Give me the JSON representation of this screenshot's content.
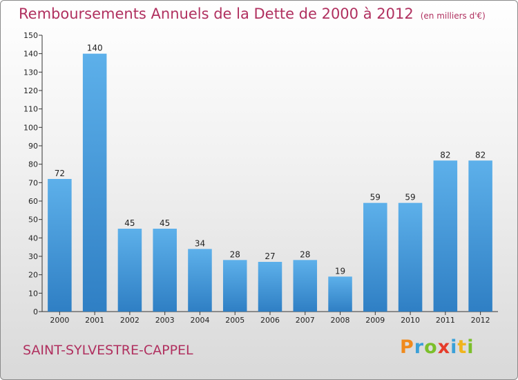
{
  "title": "Remboursements Annuels de la Dette de 2000 à 2012",
  "unit_note": "(en milliers d'€)",
  "city": "SAINT-SYLVESTRE-CAPPEL",
  "logo": {
    "letters": [
      "P",
      "r",
      "o",
      "x",
      "i",
      "t",
      "i"
    ],
    "colors": [
      "#f08a1c",
      "#3aa0d8",
      "#7bbf2a",
      "#e63c2b",
      "#3aa0d8",
      "#f0b41c",
      "#7bbf2a"
    ]
  },
  "colors": {
    "bar": "#3f97dc",
    "bar_light": "#5db0ea",
    "bar_dark": "#2f7fc4",
    "title": "#b0305f",
    "axis": "#333333"
  },
  "chart_data": {
    "type": "bar",
    "title": "Remboursements Annuels de la Dette de 2000 à 2012",
    "ylabel": "(en milliers d'€)",
    "xlabel": "",
    "categories": [
      "2000",
      "2001",
      "2002",
      "2003",
      "2004",
      "2005",
      "2006",
      "2007",
      "2008",
      "2009",
      "2010",
      "2011",
      "2012"
    ],
    "values": [
      72,
      140,
      45,
      45,
      34,
      28,
      27,
      28,
      19,
      59,
      59,
      82,
      82
    ],
    "ylim": [
      0,
      150
    ],
    "yticks": [
      0,
      10,
      20,
      30,
      40,
      50,
      60,
      70,
      80,
      90,
      100,
      110,
      120,
      130,
      140,
      150
    ],
    "grid": false,
    "legend": "none"
  }
}
